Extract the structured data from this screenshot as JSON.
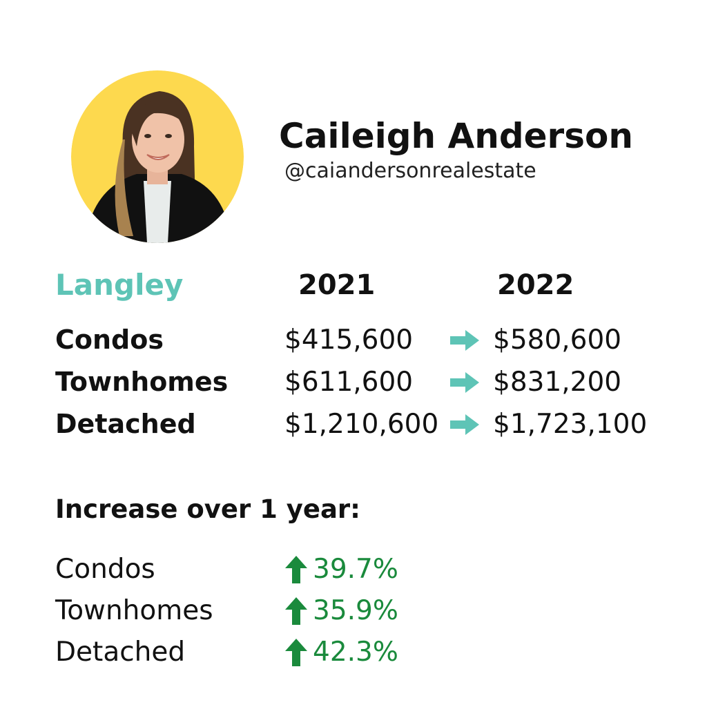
{
  "colors": {
    "accent": "#5ec4b6",
    "increase": "#1a8a3c",
    "avatar_bg": "#fdd94e",
    "text": "#111111"
  },
  "profile": {
    "name": "Caileigh Anderson",
    "handle": "@caiandersonrealestate"
  },
  "prices": {
    "location": "Langley",
    "years": [
      "2021",
      "2022"
    ],
    "rows": [
      {
        "label": "Condos",
        "from": "$415,600",
        "to": "$580,600"
      },
      {
        "label": "Townhomes",
        "from": "$611,600",
        "to": "$831,200"
      },
      {
        "label": "Detached",
        "from": "$1,210,600",
        "to": "$1,723,100"
      }
    ]
  },
  "increase": {
    "heading": "Increase over 1 year:",
    "rows": [
      {
        "label": "Condos",
        "value": "39.7%"
      },
      {
        "label": "Townhomes",
        "value": "35.9%"
      },
      {
        "label": "Detached",
        "value": "42.3%"
      }
    ]
  }
}
